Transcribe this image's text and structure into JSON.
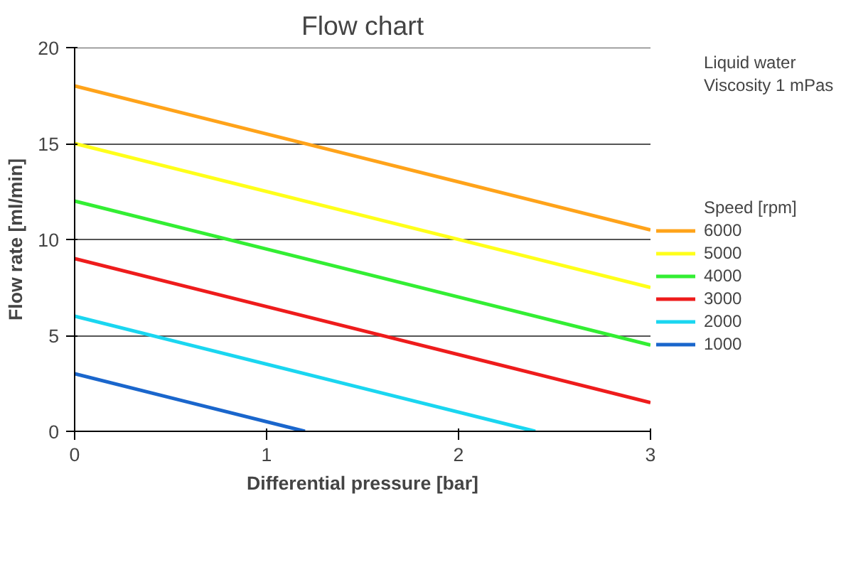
{
  "chart_data": {
    "type": "line",
    "title": "Flow chart",
    "xlabel": "Differential pressure [bar]",
    "ylabel": "Flow rate [ml/min]",
    "legend_title": "Speed [rpm]",
    "annotations": [
      "Liquid water",
      "Viscosity 1 mPas"
    ],
    "series": [
      {
        "name": "6000",
        "color": "#ffa31a",
        "x": [
          0,
          3
        ],
        "values": [
          18,
          10.5
        ]
      },
      {
        "name": "5000",
        "color": "#ffff1a",
        "x": [
          0,
          3
        ],
        "values": [
          15,
          7.5
        ]
      },
      {
        "name": "4000",
        "color": "#33ee33",
        "x": [
          0,
          3
        ],
        "values": [
          12,
          4.5
        ]
      },
      {
        "name": "3000",
        "color": "#ee1c1c",
        "x": [
          0,
          3
        ],
        "values": [
          9,
          1.5
        ]
      },
      {
        "name": "2000",
        "color": "#1ad6f0",
        "x": [
          0,
          2.4
        ],
        "values": [
          6,
          0
        ]
      },
      {
        "name": "1000",
        "color": "#1a66cc",
        "x": [
          0,
          1.2
        ],
        "values": [
          3,
          0
        ]
      }
    ],
    "xlim": [
      0,
      3
    ],
    "ylim": [
      0,
      20
    ],
    "xticks": [
      0,
      1,
      2,
      3
    ],
    "yticks": [
      0,
      5,
      10,
      15,
      20
    ],
    "grid": "y",
    "legend": "right",
    "marker": "none",
    "line_style": "solid"
  }
}
